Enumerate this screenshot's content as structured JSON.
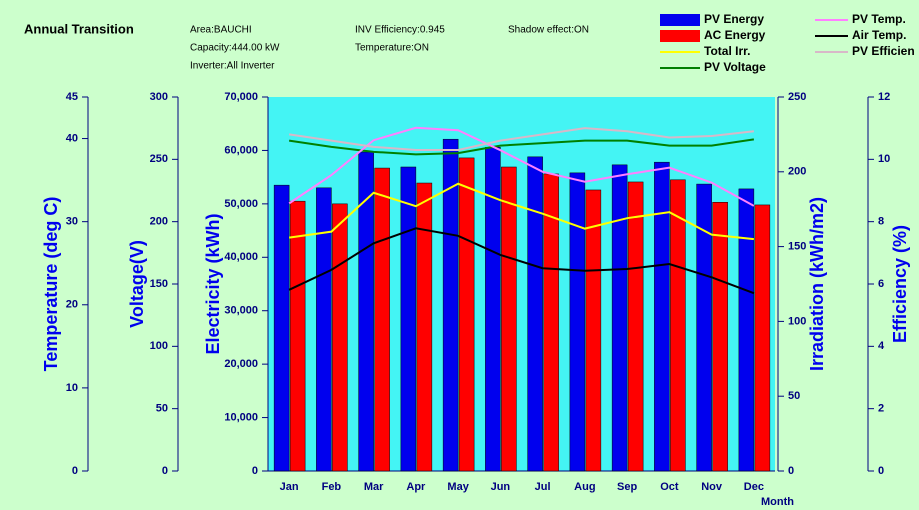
{
  "chart_data": {
    "type": "bar",
    "title": "Annual Transition",
    "info": [
      "Area:BAUCHI",
      "Capacity:444.00 kW",
      "Inverter:All Inverter",
      "INV Efficiency:0.945",
      "Temperature:ON",
      "Shadow effect:ON"
    ],
    "x_label": "Month",
    "categories": [
      "Jan",
      "Feb",
      "Mar",
      "Apr",
      "May",
      "Jun",
      "Jul",
      "Aug",
      "Sep",
      "Oct",
      "Nov",
      "Dec"
    ],
    "axes": [
      {
        "label": "Electricity (kWh)",
        "lim": [
          0,
          70000
        ],
        "ticks": [
          0,
          {
            "value": 10000,
            "label": "10,000"
          },
          {
            "value": 20000,
            "label": "20,000"
          },
          {
            "value": 30000,
            "label": "30,000"
          },
          {
            "value": 40000,
            "label": "40,000"
          },
          {
            "value": 50000,
            "label": "50,000"
          },
          {
            "value": 60000,
            "label": "60,000"
          },
          {
            "value": 70000,
            "label": "70,000"
          }
        ]
      },
      {
        "label": "Voltage(V)",
        "lim": [
          0,
          300
        ],
        "ticks": [
          0,
          50,
          100,
          150,
          200,
          250,
          300
        ]
      },
      {
        "label": "Temperature (deg C)",
        "lim": [
          0,
          45
        ],
        "ticks": [
          0,
          10,
          20,
          30,
          40,
          45
        ]
      },
      {
        "label": "Irradiation (kWh/m2)",
        "lim": [
          0,
          250
        ],
        "ticks": [
          0,
          50,
          100,
          150,
          200,
          250
        ]
      },
      {
        "label": "Efficiency (%)",
        "lim": [
          0,
          12
        ],
        "ticks": [
          0,
          2,
          4,
          6,
          8,
          10,
          12
        ]
      }
    ],
    "series": [
      {
        "name": "PV Energy",
        "type": "bar",
        "axis": 0,
        "color": "#0000ee",
        "values": [
          53500,
          53000,
          59700,
          56900,
          62100,
          60600,
          58800,
          55800,
          57300,
          57800,
          53700,
          52800
        ]
      },
      {
        "name": "AC Energy",
        "type": "bar",
        "axis": 0,
        "color": "#ff0000",
        "values": [
          50500,
          50000,
          56700,
          53900,
          58600,
          56900,
          55600,
          52600,
          54100,
          54500,
          50300,
          49800
        ]
      },
      {
        "name": "Total Irr.",
        "type": "line",
        "axis": 3,
        "color": "#ffff00",
        "values": [
          156,
          160,
          186,
          177,
          192,
          181,
          172,
          162,
          169,
          173,
          158,
          155
        ]
      },
      {
        "name": "PV Voltage",
        "type": "line",
        "axis": 1,
        "color": "#008000",
        "values": [
          265,
          260,
          256,
          254,
          255,
          261,
          263,
          265,
          265,
          261,
          261,
          266
        ]
      },
      {
        "name": "PV Temp.",
        "type": "line",
        "axis": 2,
        "color": "#ff80ff",
        "values": [
          32.2,
          35.6,
          39.8,
          41.3,
          41.0,
          38.6,
          36.0,
          34.8,
          35.7,
          36.5,
          34.7,
          31.9
        ]
      },
      {
        "name": "Air Temp.",
        "type": "line",
        "axis": 2,
        "color": "#000000",
        "values": [
          21.8,
          24.2,
          27.4,
          29.2,
          28.3,
          26.0,
          24.4,
          24.1,
          24.3,
          24.9,
          23.3,
          21.4
        ]
      },
      {
        "name": "PV Efficien",
        "type": "line",
        "axis": 4,
        "color": "#d8b8c8",
        "values": [
          10.8,
          10.6,
          10.4,
          10.3,
          10.3,
          10.6,
          10.8,
          11.0,
          10.9,
          10.7,
          10.75,
          10.9
        ]
      }
    ]
  }
}
